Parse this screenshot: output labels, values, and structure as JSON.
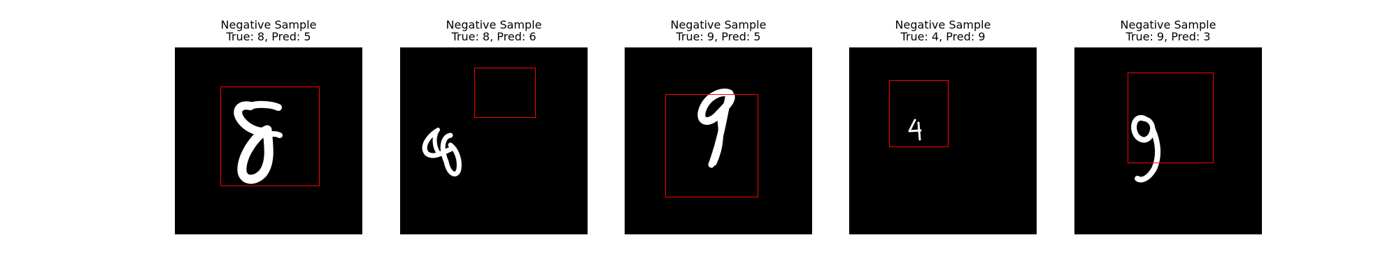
{
  "panels": [
    {
      "title": "Negative Sample",
      "subtitle": "True: 8, Pred: 5",
      "digit": "8",
      "digit_icon": "digit-8-icon",
      "box_color": "#ff0000"
    },
    {
      "title": "Negative Sample",
      "subtitle": "True: 8, Pred: 6",
      "digit": "8",
      "digit_icon": "digit-8-icon",
      "box_color": "#ff0000"
    },
    {
      "title": "Negative Sample",
      "subtitle": "True: 9, Pred: 5",
      "digit": "9",
      "digit_icon": "digit-9-icon",
      "box_color": "#ff0000"
    },
    {
      "title": "Negative Sample",
      "subtitle": "True: 4, Pred: 9",
      "digit": "4",
      "digit_icon": "digit-4-icon",
      "box_color": "#ff0000"
    },
    {
      "title": "Negative Sample",
      "subtitle": "True: 9, Pred: 3",
      "digit": "9",
      "digit_icon": "digit-9-icon",
      "box_color": "#ff0000"
    }
  ]
}
